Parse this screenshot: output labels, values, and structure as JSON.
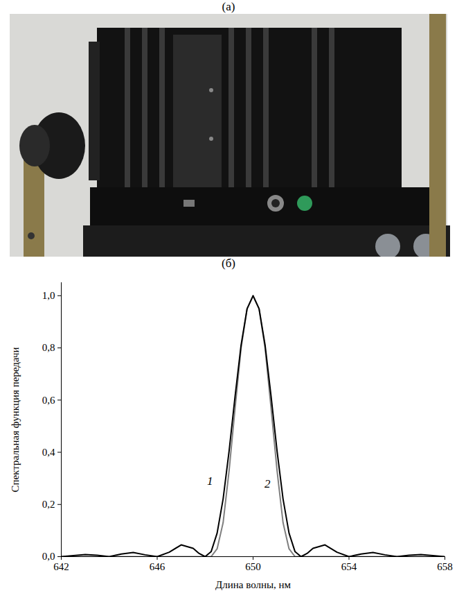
{
  "photo": {
    "label": "(а)"
  },
  "chart_data": {
    "type": "line",
    "title": "(б)",
    "x_label": "Длина волны, нм",
    "y_label": "Спектральная функция передачи",
    "x": [
      642,
      642.5,
      643,
      643.5,
      644,
      644.5,
      645,
      645.5,
      646,
      646.5,
      647,
      647.5,
      647.75,
      648,
      648.25,
      648.5,
      648.75,
      649,
      649.25,
      649.5,
      649.75,
      650,
      650.25,
      650.5,
      650.75,
      651,
      651.25,
      651.5,
      651.75,
      652,
      652.25,
      652.5,
      653,
      653.5,
      654,
      654.5,
      655,
      655.5,
      656,
      656.5,
      657,
      657.5,
      658
    ],
    "series": [
      {
        "name": "1",
        "color": "#000000",
        "line_style": "solid",
        "label_x": 648.2,
        "label_y": 0.29,
        "values": [
          0,
          0.004,
          0.008,
          0.005,
          0,
          0.01,
          0.016,
          0.007,
          0,
          0.017,
          0.045,
          0.032,
          0.012,
          0,
          0.019,
          0.09,
          0.221,
          0.405,
          0.615,
          0.811,
          0.95,
          1,
          0.95,
          0.811,
          0.615,
          0.405,
          0.221,
          0.09,
          0.019,
          0,
          0.012,
          0.032,
          0.045,
          0.017,
          0,
          0.01,
          0.016,
          0.007,
          0,
          0.005,
          0.008,
          0.004,
          0
        ]
      },
      {
        "name": "2",
        "color": "#7f7f7f",
        "line_style": "solid",
        "label_x": 650.6,
        "label_y": 0.28,
        "values": [
          0,
          0,
          0,
          0,
          0,
          0,
          0,
          0,
          0,
          0,
          0,
          0,
          0,
          0,
          0,
          0.03,
          0.13,
          0.33,
          0.57,
          0.8,
          0.95,
          1,
          0.95,
          0.8,
          0.57,
          0.33,
          0.13,
          0.03,
          0,
          0,
          0,
          0,
          0,
          0,
          0,
          0,
          0,
          0,
          0,
          0,
          0,
          0,
          0
        ]
      }
    ],
    "xlim": [
      642,
      658
    ],
    "xticks": [
      642,
      646,
      650,
      654,
      658
    ],
    "ylim": [
      0,
      1.05
    ],
    "yticks": [
      {
        "value": 0,
        "label": "0,0"
      },
      {
        "value": 0.2,
        "label": "0,2"
      },
      {
        "value": 0.4,
        "label": "0,4"
      },
      {
        "value": 0.6,
        "label": "0,6"
      },
      {
        "value": 0.8,
        "label": "0,8"
      },
      {
        "value": 1,
        "label": "1,0"
      }
    ],
    "grid": false
  }
}
